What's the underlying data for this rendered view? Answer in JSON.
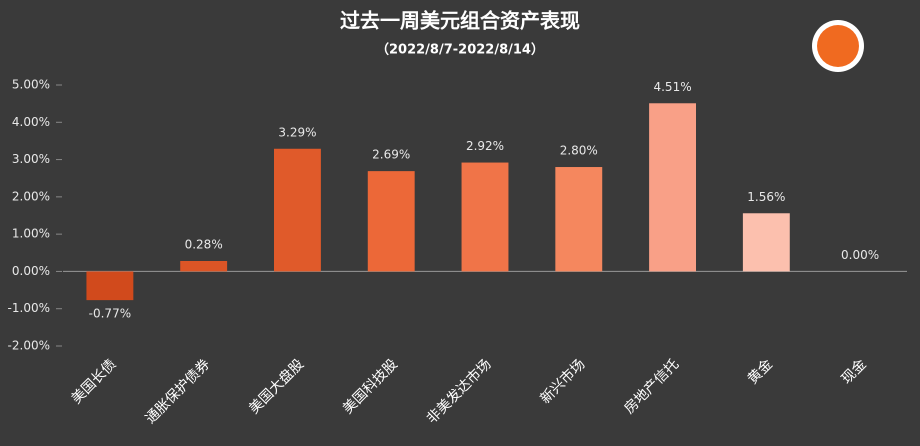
{
  "chart_data": {
    "type": "bar",
    "title": "过去一周美元组合资产表现",
    "subtitle": "（2022/8/7-2022/8/14）",
    "categories": [
      "美国长债",
      "通胀保护债券",
      "美国大盘股",
      "美国科技股",
      "非美发达市场",
      "新兴市场",
      "房地产信托",
      "黄金",
      "现金"
    ],
    "values": [
      -0.77,
      0.28,
      3.29,
      2.69,
      2.92,
      2.8,
      4.51,
      1.56,
      0.0
    ],
    "value_labels": [
      "-0.77%",
      "0.28%",
      "3.29%",
      "2.69%",
      "2.92%",
      "2.80%",
      "4.51%",
      "1.56%",
      "0.00%"
    ],
    "colors": [
      "#d14a1c",
      "#dc5526",
      "#e05a2a",
      "#ec6838",
      "#f07448",
      "#f5875e",
      "#f9a087",
      "#fcc0ae",
      "#fdd5c8"
    ],
    "ylim": [
      -2,
      5
    ],
    "yticks": [
      {
        "value": -2,
        "label": "-2.00%"
      },
      {
        "value": -1,
        "label": "-1.00%"
      },
      {
        "value": 0,
        "label": "0.00%"
      },
      {
        "value": 1,
        "label": "1.00%"
      },
      {
        "value": 2,
        "label": "2.00%"
      },
      {
        "value": 3,
        "label": "3.00%"
      },
      {
        "value": 4,
        "label": "4.00%"
      },
      {
        "value": 5,
        "label": "5.00%"
      }
    ],
    "grid": false
  }
}
